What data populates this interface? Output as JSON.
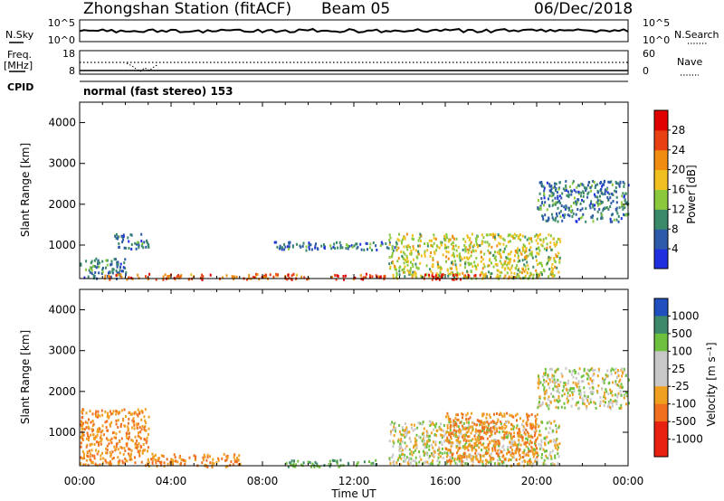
{
  "header": {
    "station": "Zhongshan Station (fitACF)",
    "beam": "Beam 05",
    "date": "06/Dec/2018"
  },
  "nsky_panel": {
    "left_label": "N.Sky",
    "left_ticks": [
      "10^5",
      "10^0"
    ],
    "right_label": "N.Search",
    "right_ticks": [
      "10^5",
      "10^0"
    ]
  },
  "freq_panel": {
    "left_label_1": "Freq.",
    "left_label_2": "[MHz]",
    "left_ticks": [
      "18",
      "8"
    ],
    "right_label": "Nave",
    "right_ticks": [
      "60",
      "0"
    ],
    "cpid_label": "CPID",
    "cpid_text": "normal (fast stereo) 153"
  },
  "x_axis": {
    "ticks": [
      "00:00",
      "04:00",
      "08:00",
      "12:00",
      "16:00",
      "20:00",
      "00:00"
    ],
    "label": "Time UT"
  },
  "power_panel": {
    "ylabel": "Slant Range [km]",
    "yticks": [
      "1000",
      "2000",
      "3000",
      "4000"
    ],
    "colorbar_label": "Power [dB]",
    "colorbar_ticks": [
      "4",
      "8",
      "12",
      "16",
      "20",
      "24",
      "28"
    ]
  },
  "velocity_panel": {
    "ylabel": "Slant Range [km]",
    "yticks": [
      "1000",
      "2000",
      "3000",
      "4000"
    ],
    "colorbar_label": "Velocity [m s⁻¹]",
    "colorbar_ticks": [
      "1000",
      "500",
      "100",
      "25",
      "-25",
      "-100",
      "-500",
      "-1000"
    ]
  },
  "colors": {
    "power_scale": [
      "#1f2fe0",
      "#2c5aa8",
      "#3a8a6a",
      "#8cc83c",
      "#f0c020",
      "#f08c10",
      "#e84010",
      "#e00000"
    ],
    "velocity_scale": [
      "#2050c0",
      "#3c8a6a",
      "#70c040",
      "#c8c8c8",
      "#f0a020",
      "#f07020",
      "#e82010"
    ]
  },
  "chart_data": [
    {
      "type": "heatmap",
      "title": "Zhongshan Station (fitACF) Beam 05 06/Dec/2018",
      "quantity": "Power [dB]",
      "xlabel": "Time UT",
      "ylabel": "Slant Range [km]",
      "xlim": [
        "00:00",
        "24:00"
      ],
      "ylim": [
        180,
        4500
      ],
      "clim": [
        0,
        32
      ],
      "regions": [
        {
          "t": [
            0.0,
            2.0
          ],
          "range": [
            200,
            700
          ],
          "power": 8
        },
        {
          "t": [
            1.5,
            3.0
          ],
          "range": [
            900,
            1300
          ],
          "power": 8
        },
        {
          "t": [
            1.0,
            10.0
          ],
          "range": [
            180,
            320
          ],
          "power": 24
        },
        {
          "t": [
            8.5,
            14.0
          ],
          "range": [
            900,
            1100
          ],
          "power": 8
        },
        {
          "t": [
            11.0,
            13.5
          ],
          "range": [
            180,
            320
          ],
          "power": 28
        },
        {
          "t": [
            13.5,
            21.0
          ],
          "range": [
            200,
            1300
          ],
          "power": 16
        },
        {
          "t": [
            15.0,
            17.5
          ],
          "range": [
            180,
            320
          ],
          "power": 28
        },
        {
          "t": [
            20.0,
            24.0
          ],
          "range": [
            1600,
            2600
          ],
          "power": 8
        }
      ]
    },
    {
      "type": "heatmap",
      "title": "Zhongshan Station (fitACF) Beam 05 06/Dec/2018",
      "quantity": "Velocity [m s^-1]",
      "xlabel": "Time UT",
      "ylabel": "Slant Range [km]",
      "xlim": [
        "00:00",
        "24:00"
      ],
      "ylim": [
        180,
        4500
      ],
      "clim": [
        -1000,
        1000
      ],
      "regions": [
        {
          "t": [
            0.0,
            3.0
          ],
          "range": [
            200,
            1600
          ],
          "velocity": -100
        },
        {
          "t": [
            3.0,
            7.0
          ],
          "range": [
            180,
            500
          ],
          "velocity": -100
        },
        {
          "t": [
            9.0,
            13.0
          ],
          "range": [
            180,
            350
          ],
          "velocity": 100
        },
        {
          "t": [
            13.5,
            21.0
          ],
          "range": [
            200,
            1300
          ],
          "velocity": 0
        },
        {
          "t": [
            16.0,
            20.0
          ],
          "range": [
            300,
            1500
          ],
          "velocity": -100
        },
        {
          "t": [
            20.0,
            24.0
          ],
          "range": [
            1600,
            2600
          ],
          "velocity": 0
        }
      ]
    }
  ]
}
